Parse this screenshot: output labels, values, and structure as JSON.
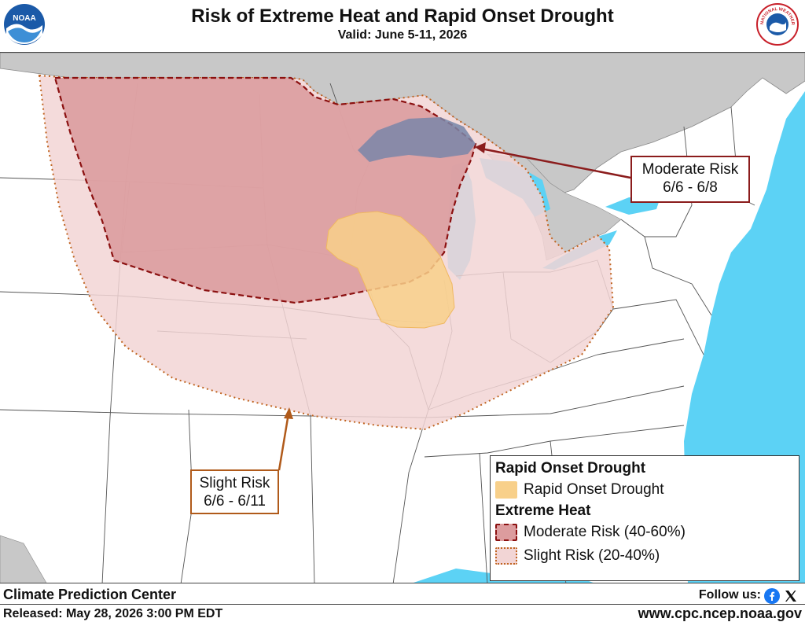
{
  "header": {
    "title": "Risk of Extreme Heat and Rapid Onset Drought",
    "subtitle": "Valid: June 5-11, 2026",
    "left_logo_text": "NOAA",
    "right_logo_text": "NATIONAL WEATHER SERVICE"
  },
  "map": {
    "water_color": "#5cd2f5",
    "land_color": "#ffffff",
    "foreign_land_color": "#c8c8c8",
    "colors": {
      "moderate_fill": "#dc9c9e",
      "moderate_line": "#8b1010",
      "slight_fill": "#f2d5d5",
      "slight_line": "#c06420",
      "drought_fill": "#f8d08a"
    }
  },
  "callouts": {
    "moderate": {
      "line1": "Moderate Risk",
      "line2": "6/6 - 6/8"
    },
    "slight": {
      "line1": "Slight Risk",
      "line2": "6/6 - 6/11"
    }
  },
  "legend": {
    "drought_heading": "Rapid Onset Drought",
    "drought_label": "Rapid Onset Drought",
    "heat_heading": "Extreme Heat",
    "moderate_label": "Moderate Risk (40-60%)",
    "slight_label": "Slight Risk (20-40%)"
  },
  "footer": {
    "org": "Climate Prediction Center",
    "released": "Released: May 28, 2026 3:00 PM EDT",
    "follow": "Follow us:",
    "facebook_icon": "facebook-icon",
    "x_icon": "x-icon",
    "url": "www.cpc.ncep.noaa.gov"
  }
}
